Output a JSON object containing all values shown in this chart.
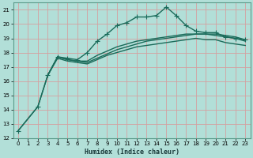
{
  "title": "",
  "xlabel": "Humidex (Indice chaleur)",
  "ylabel": "",
  "xlim": [
    -0.5,
    23.5
  ],
  "ylim": [
    12,
    21.5
  ],
  "yticks": [
    12,
    13,
    14,
    15,
    16,
    17,
    18,
    19,
    20,
    21
  ],
  "xticks": [
    0,
    1,
    2,
    3,
    4,
    5,
    6,
    7,
    8,
    9,
    10,
    11,
    12,
    13,
    14,
    15,
    16,
    17,
    18,
    19,
    20,
    21,
    22,
    23
  ],
  "bg_color": "#b2dfd8",
  "grid_color": "#d4a0a0",
  "line_color": "#1a6b5a",
  "lines": [
    {
      "x": [
        0,
        2,
        3,
        4,
        5,
        6,
        7,
        8,
        9,
        10,
        11,
        12,
        13,
        14,
        15,
        16,
        17,
        18,
        19,
        20,
        21,
        22,
        23
      ],
      "y": [
        12.5,
        14.2,
        16.4,
        17.7,
        17.6,
        17.5,
        18.0,
        18.8,
        19.3,
        19.9,
        20.1,
        20.5,
        20.5,
        20.6,
        21.2,
        20.6,
        19.9,
        19.5,
        19.4,
        19.4,
        19.1,
        19.0,
        18.9
      ],
      "marker": "+",
      "ls": "-",
      "lw": 1.0,
      "ms": 4
    },
    {
      "x": [
        3,
        4,
        5,
        6,
        7,
        8,
        9,
        10,
        11,
        12,
        13,
        14,
        15,
        16,
        17,
        18,
        19,
        20,
        21,
        22,
        23
      ],
      "y": [
        16.4,
        17.7,
        17.5,
        17.4,
        17.3,
        17.6,
        17.9,
        18.2,
        18.4,
        18.6,
        18.8,
        18.9,
        19.0,
        19.1,
        19.2,
        19.3,
        19.3,
        19.3,
        19.2,
        19.1,
        18.9
      ],
      "marker": null,
      "ls": "-",
      "lw": 1.0,
      "ms": 0
    },
    {
      "x": [
        3,
        4,
        5,
        6,
        7,
        8,
        9,
        10,
        11,
        12,
        13,
        14,
        15,
        16,
        17,
        18,
        19,
        20,
        21,
        22,
        23
      ],
      "y": [
        16.4,
        17.6,
        17.4,
        17.3,
        17.2,
        17.5,
        17.8,
        18.0,
        18.2,
        18.4,
        18.5,
        18.6,
        18.7,
        18.8,
        18.9,
        19.0,
        18.9,
        18.9,
        18.7,
        18.6,
        18.5
      ],
      "marker": null,
      "ls": "-",
      "lw": 1.0,
      "ms": 0
    },
    {
      "x": [
        0,
        2,
        3,
        4,
        5,
        6,
        7,
        8,
        9,
        10,
        11,
        12,
        13,
        14,
        15,
        16,
        17,
        18,
        19,
        20,
        21,
        22,
        23
      ],
      "y": [
        12.5,
        14.2,
        16.4,
        17.7,
        17.5,
        17.4,
        17.4,
        17.8,
        18.1,
        18.4,
        18.6,
        18.8,
        18.9,
        19.0,
        19.1,
        19.2,
        19.3,
        19.3,
        19.3,
        19.2,
        19.1,
        19.0,
        18.8
      ],
      "marker": null,
      "ls": "-",
      "lw": 1.0,
      "ms": 0
    }
  ],
  "xlabel_fontsize": 6.0,
  "tick_fontsize": 5.0
}
